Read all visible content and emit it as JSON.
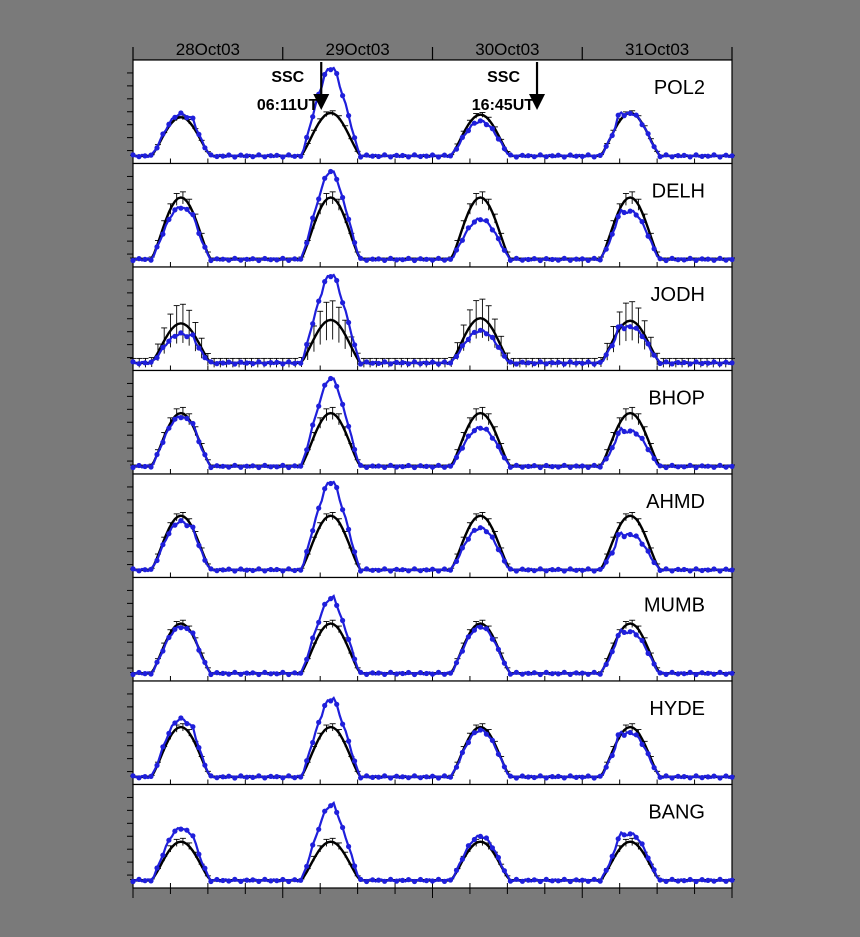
{
  "chart_data": {
    "type": "line",
    "x_tick_labels": [
      "28Oct03",
      "29Oct03",
      "30Oct03",
      "31Oct03"
    ],
    "xlim_days": [
      28,
      32
    ],
    "grid": false,
    "legend": "none",
    "colors": {
      "storm": "#1f1fdb",
      "mean": "#000000",
      "background": "#ffffff",
      "page": "#7a7a7a"
    },
    "annotations": [
      {
        "title": "SSC",
        "time": "06:11UT",
        "day": 29.257
      },
      {
        "title": "SSC",
        "time": "16:45UT",
        "day": 30.698
      }
    ],
    "panels": [
      {
        "station": "POL2",
        "peaks_mean": [
          0.45,
          0.5,
          0.48,
          0.5
        ],
        "peaks_storm": [
          0.52,
          1.0,
          0.43,
          0.53
        ],
        "spread": 0.02
      },
      {
        "station": "DELH",
        "peaks_mean": [
          0.72,
          0.72,
          0.72,
          0.72
        ],
        "peaks_storm": [
          0.65,
          1.0,
          0.5,
          0.6
        ],
        "spread": 0.05
      },
      {
        "station": "JODH",
        "peaks_mean": [
          0.46,
          0.5,
          0.52,
          0.49
        ],
        "peaks_storm": [
          0.36,
          1.0,
          0.4,
          0.45
        ],
        "spread": 0.16
      },
      {
        "station": "BHOP",
        "peaks_mean": [
          0.62,
          0.62,
          0.62,
          0.62
        ],
        "peaks_storm": [
          0.62,
          1.0,
          0.48,
          0.44
        ],
        "spread": 0.05
      },
      {
        "station": "AHMD",
        "peaks_mean": [
          0.63,
          0.63,
          0.63,
          0.63
        ],
        "peaks_storm": [
          0.6,
          1.0,
          0.52,
          0.44
        ],
        "spread": 0.03
      },
      {
        "station": "MUMB",
        "peaks_mean": [
          0.58,
          0.58,
          0.58,
          0.58
        ],
        "peaks_storm": [
          0.58,
          0.85,
          0.58,
          0.52
        ],
        "spread": 0.03
      },
      {
        "station": "HYDE",
        "peaks_mean": [
          0.58,
          0.58,
          0.58,
          0.58
        ],
        "peaks_storm": [
          0.72,
          0.88,
          0.58,
          0.55
        ],
        "spread": 0.03
      },
      {
        "station": "BANG",
        "peaks_mean": [
          0.45,
          0.45,
          0.45,
          0.45
        ],
        "peaks_storm": [
          0.65,
          0.85,
          0.55,
          0.58
        ],
        "spread": 0.03
      }
    ]
  }
}
